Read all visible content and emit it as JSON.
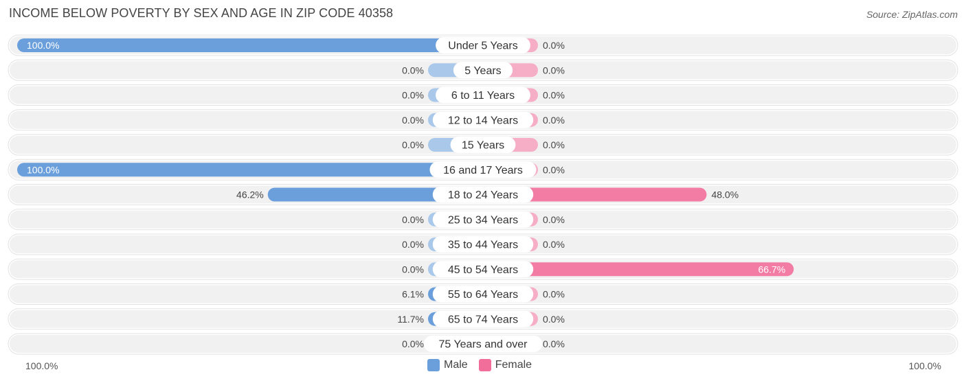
{
  "title": "INCOME BELOW POVERTY BY SEX AND AGE IN ZIP CODE 40358",
  "source": "Source: ZipAtlas.com",
  "axis_left_label": "100.0%",
  "axis_right_label": "100.0%",
  "legend": [
    {
      "label": "Male",
      "color": "#6a9fdc"
    },
    {
      "label": "Female",
      "color": "#f06e99"
    }
  ],
  "colors": {
    "male_strong": "#6a9fdc",
    "male_light": "#a9c8ea",
    "female_strong": "#f27ca3",
    "female_light": "#f6aec6",
    "row_bg": "#f1f1f1"
  },
  "chart_data": {
    "type": "bar",
    "orientation": "horizontal-diverging",
    "title": "INCOME BELOW POVERTY BY SEX AND AGE IN ZIP CODE 40358",
    "xlim": [
      -100,
      100
    ],
    "categories": [
      "Under 5 Years",
      "5 Years",
      "6 to 11 Years",
      "12 to 14 Years",
      "15 Years",
      "16 and 17 Years",
      "18 to 24 Years",
      "25 to 34 Years",
      "35 to 44 Years",
      "45 to 54 Years",
      "55 to 64 Years",
      "65 to 74 Years",
      "75 Years and over"
    ],
    "series": [
      {
        "name": "Male",
        "values": [
          100.0,
          0.0,
          0.0,
          0.0,
          0.0,
          100.0,
          46.2,
          0.0,
          0.0,
          0.0,
          6.1,
          11.7,
          0.0
        ],
        "labels": [
          "100.0%",
          "0.0%",
          "0.0%",
          "0.0%",
          "0.0%",
          "100.0%",
          "46.2%",
          "0.0%",
          "0.0%",
          "0.0%",
          "6.1%",
          "11.7%",
          "0.0%"
        ]
      },
      {
        "name": "Female",
        "values": [
          0.0,
          0.0,
          0.0,
          0.0,
          0.0,
          0.0,
          48.0,
          0.0,
          0.0,
          66.7,
          0.0,
          0.0,
          0.0
        ],
        "labels": [
          "0.0%",
          "0.0%",
          "0.0%",
          "0.0%",
          "0.0%",
          "0.0%",
          "48.0%",
          "0.0%",
          "0.0%",
          "66.7%",
          "0.0%",
          "0.0%",
          "0.0%"
        ]
      }
    ]
  }
}
